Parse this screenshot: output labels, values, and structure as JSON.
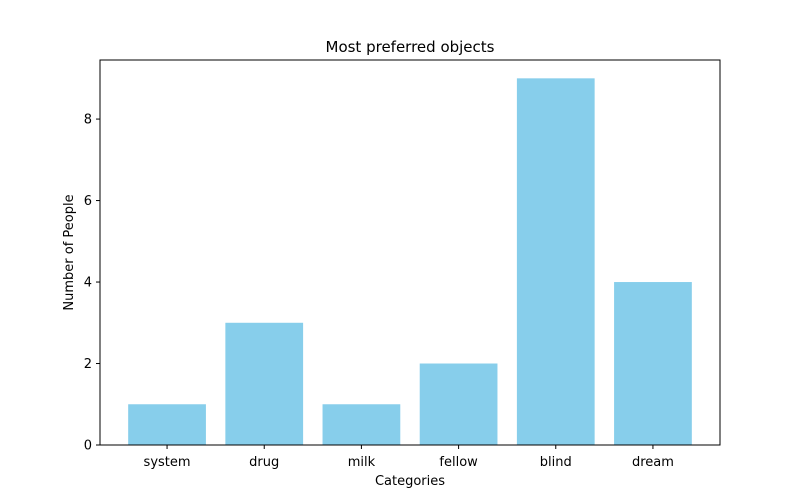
{
  "chart_data": {
    "type": "bar",
    "title": "Most preferred objects",
    "xlabel": "Categories",
    "ylabel": "Number of People",
    "categories": [
      "system",
      "drug",
      "milk",
      "fellow",
      "blind",
      "dream"
    ],
    "values": [
      1,
      3,
      1,
      2,
      9,
      4
    ],
    "ylim": [
      0,
      9.45
    ],
    "yticks": [
      0,
      2,
      4,
      6,
      8
    ],
    "bar_color": "#87CEEB",
    "grid": false,
    "legend": "none"
  }
}
